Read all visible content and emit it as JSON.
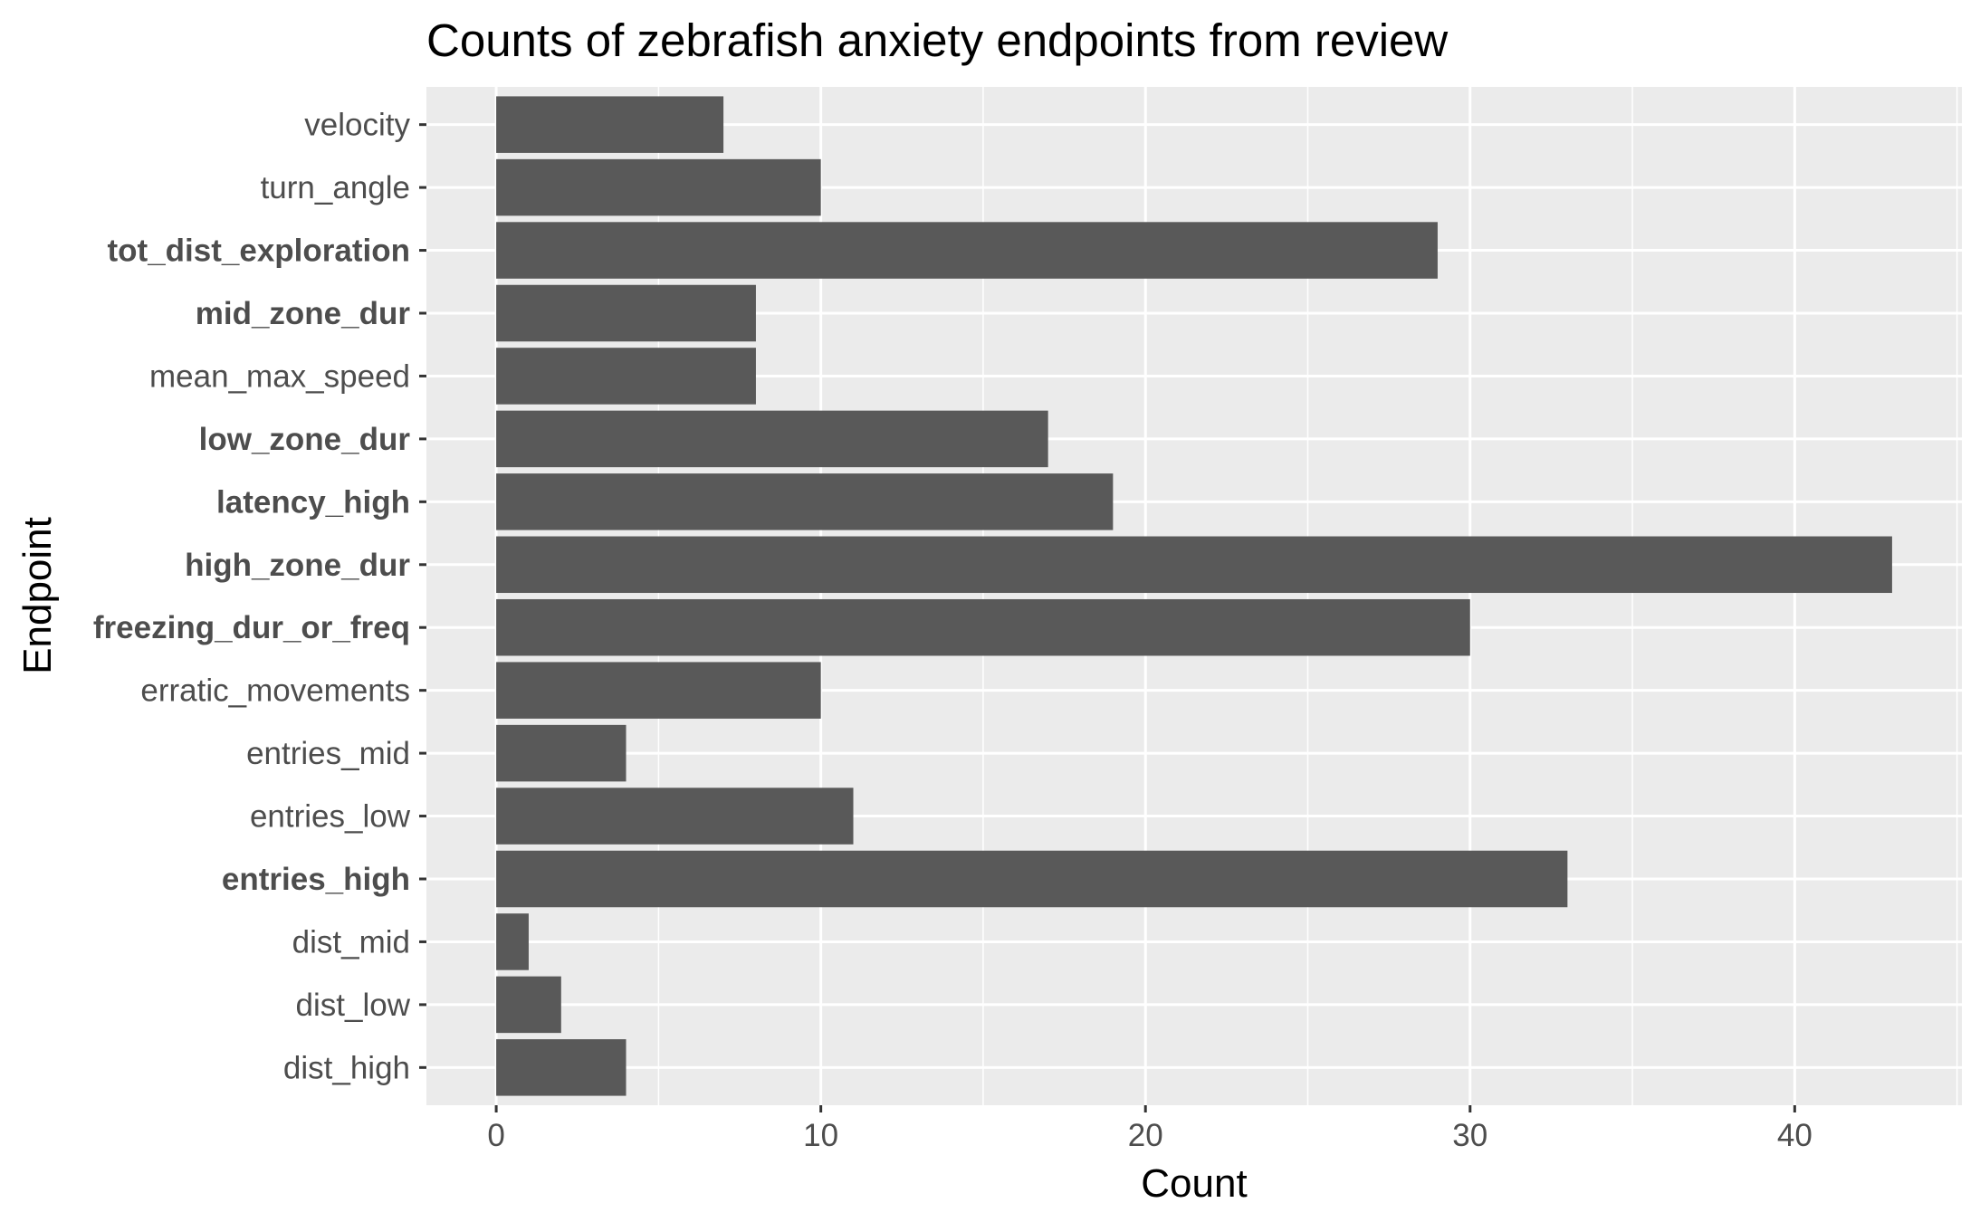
{
  "chart_data": {
    "type": "bar",
    "orientation": "horizontal",
    "title": "Counts of zebrafish anxiety endpoints from review",
    "xlabel": "Count",
    "ylabel": "Endpoint",
    "xlim": [
      -2.15,
      45.15
    ],
    "xticks": [
      0,
      10,
      20,
      30,
      40
    ],
    "xtick_labels": [
      "0",
      "10",
      "20",
      "30",
      "40"
    ],
    "grid": true,
    "legend": "none",
    "colors": {
      "bar": "#595959",
      "panel": "#ebebeb",
      "grid": "#ffffff"
    },
    "categories": [
      "velocity",
      "turn_angle",
      "tot_dist_exploration",
      "mid_zone_dur",
      "mean_max_speed",
      "low_zone_dur",
      "latency_high",
      "high_zone_dur",
      "freezing_dur_or_freq",
      "erratic_movements",
      "entries_mid",
      "entries_low",
      "entries_high",
      "dist_mid",
      "dist_low",
      "dist_high"
    ],
    "bold_categories": [
      "tot_dist_exploration",
      "mid_zone_dur",
      "low_zone_dur",
      "latency_high",
      "high_zone_dur",
      "freezing_dur_or_freq",
      "entries_high"
    ],
    "values": [
      7,
      10,
      29,
      8,
      8,
      17,
      19,
      43,
      30,
      10,
      4,
      11,
      33,
      1,
      2,
      4
    ]
  }
}
